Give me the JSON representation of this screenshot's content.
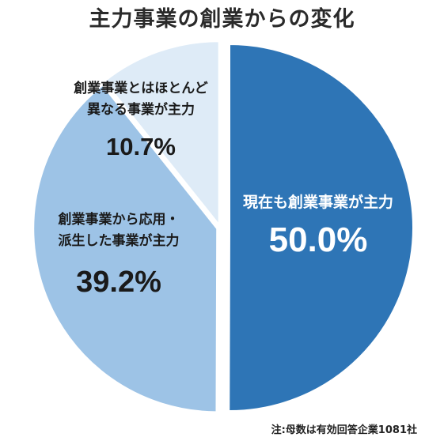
{
  "chart_data": {
    "type": "pie",
    "title": "主力事業の創業からの変化",
    "note": "注:母数は有効回答企業1081社",
    "slices": [
      {
        "label_lines": [
          "現在も創業事業が主力"
        ],
        "value": 50.0,
        "value_text": "50.0%",
        "color": "#2e75b6",
        "text_color": "#ffffff"
      },
      {
        "label_lines": [
          "創業事業から応用・",
          "派生した事業が主力"
        ],
        "value": 39.2,
        "value_text": "39.2%",
        "color": "#9dc3e6",
        "text_color": "#1a1a1a"
      },
      {
        "label_lines": [
          "創業事業とはほとんど",
          "異なる事業が主力"
        ],
        "value": 10.7,
        "value_text": "10.7%",
        "color": "#deebf7",
        "text_color": "#1a1a1a"
      }
    ]
  }
}
